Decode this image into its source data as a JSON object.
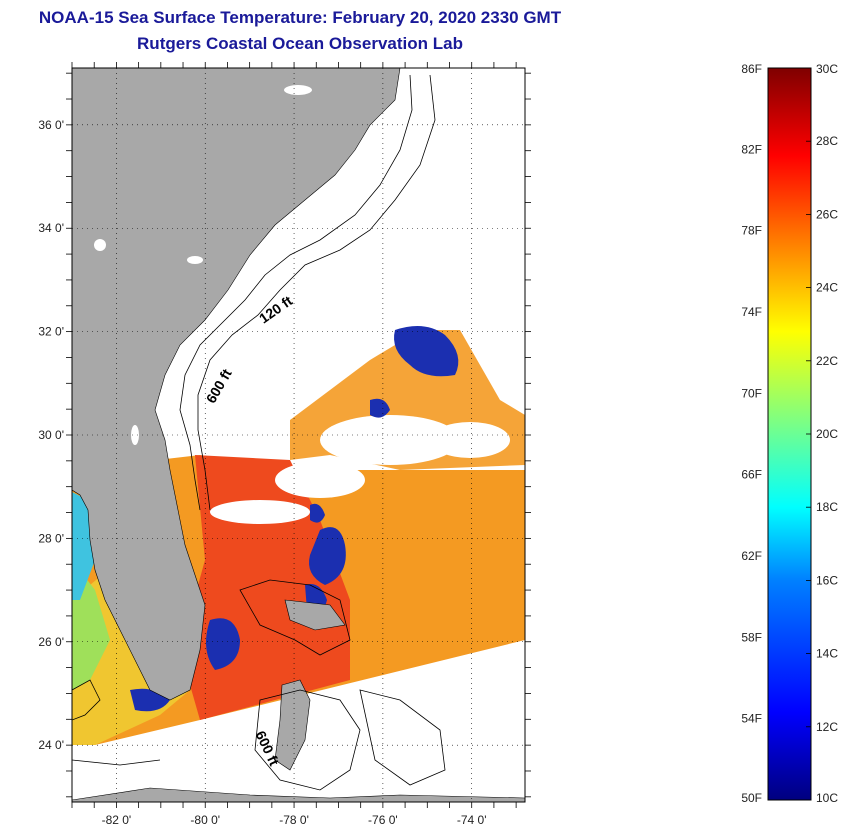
{
  "title_line1": "NOAA-15 Sea Surface Temperature:  February 20, 2020 2330 GMT",
  "title_line2": "Rutgers Coastal Ocean Observation Lab",
  "map": {
    "lat_ticks": [
      {
        "value": 36,
        "label": "36 0'"
      },
      {
        "value": 34,
        "label": "34 0'"
      },
      {
        "value": 32,
        "label": "32 0'"
      },
      {
        "value": 30,
        "label": "30 0'"
      },
      {
        "value": 28,
        "label": "28 0'"
      },
      {
        "value": 26,
        "label": "26 0'"
      },
      {
        "value": 24,
        "label": "24 0'"
      }
    ],
    "lon_ticks": [
      {
        "value": -82,
        "label": "-82 0'"
      },
      {
        "value": -80,
        "label": "-80 0'"
      },
      {
        "value": -78,
        "label": "-78 0'"
      },
      {
        "value": -76,
        "label": "-76 0'"
      },
      {
        "value": -74,
        "label": "-74 0'"
      }
    ],
    "isobath_labels": [
      {
        "text": "120 ft",
        "lat": 32.35,
        "lon": -78.35
      },
      {
        "text": "600 ft",
        "lat": 30.9,
        "lon": -79.6
      },
      {
        "text": "600 ft",
        "lat": 23.9,
        "lon": -78.7
      }
    ],
    "colors": {
      "land": "#a8a8a8",
      "cloud": "#ffffff",
      "warm_sst": "#ee4a1e",
      "mid_sst": "#f49a22",
      "cold_sst": "#1b2fb0"
    }
  },
  "colorbar": {
    "f_labels": [
      "86F",
      "82F",
      "78F",
      "74F",
      "70F",
      "66F",
      "62F",
      "58F",
      "54F",
      "50F"
    ],
    "c_labels": [
      "30C",
      "28C",
      "26C",
      "24C",
      "22C",
      "20C",
      "18C",
      "16C",
      "14C",
      "12C",
      "10C"
    ],
    "colors": [
      "#00007f",
      "#0000ff",
      "#0080ff",
      "#00ffff",
      "#80ff80",
      "#ffff00",
      "#ff8000",
      "#ff0000",
      "#7f0000"
    ]
  }
}
